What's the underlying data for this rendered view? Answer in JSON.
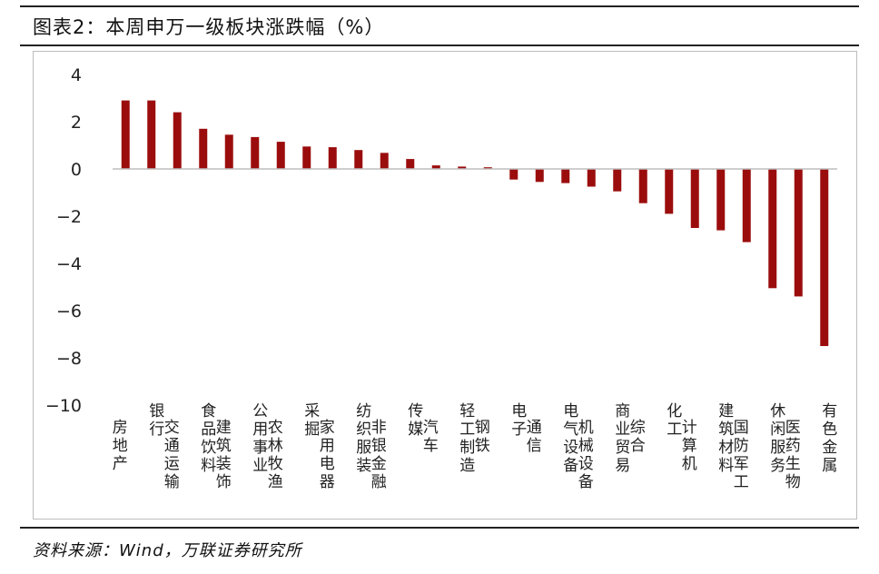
{
  "title": "图表2：本周申万一级板块涨跌幅（%）",
  "source": "资料来源：Wind，万联证券研究所",
  "colors": {
    "bar": "#9b0d0d",
    "axis": "#bdbdbd",
    "text": "#222222"
  },
  "chart_data": {
    "type": "bar",
    "title": "本周申万一级板块涨跌幅（%）",
    "xlabel": "",
    "ylabel": "",
    "ylim": [
      -10,
      4
    ],
    "yticks": [
      4,
      2,
      0,
      -2,
      -4,
      -6,
      -8,
      -10
    ],
    "ytick_labels": [
      "4",
      "2",
      "0",
      "−2",
      "−4",
      "−6",
      "−8",
      "−10"
    ],
    "grid": false,
    "legend": "none",
    "categories": [
      "房地产",
      "银行",
      "交通运输",
      "食品饮料",
      "建筑装饰",
      "公用事业",
      "农林牧渔",
      "采掘",
      "家用电器",
      "纺织服装",
      "非银金融",
      "传媒",
      "汽车",
      "轻工制造",
      "钢铁",
      "电子",
      "通信",
      "电气设备",
      "机械设备",
      "商业贸易",
      "综合",
      "化工",
      "计算机",
      "建筑材料",
      "国防军工",
      "休闲服务",
      "医药生物",
      "有色金属"
    ],
    "values": [
      2.9,
      2.9,
      2.4,
      1.7,
      1.45,
      1.35,
      1.15,
      0.95,
      0.92,
      0.8,
      0.68,
      0.42,
      0.15,
      0.1,
      0.07,
      -0.45,
      -0.55,
      -0.6,
      -0.75,
      -0.95,
      -1.45,
      -1.9,
      -2.5,
      -2.6,
      -3.1,
      -5.05,
      -5.4,
      -7.5
    ]
  }
}
